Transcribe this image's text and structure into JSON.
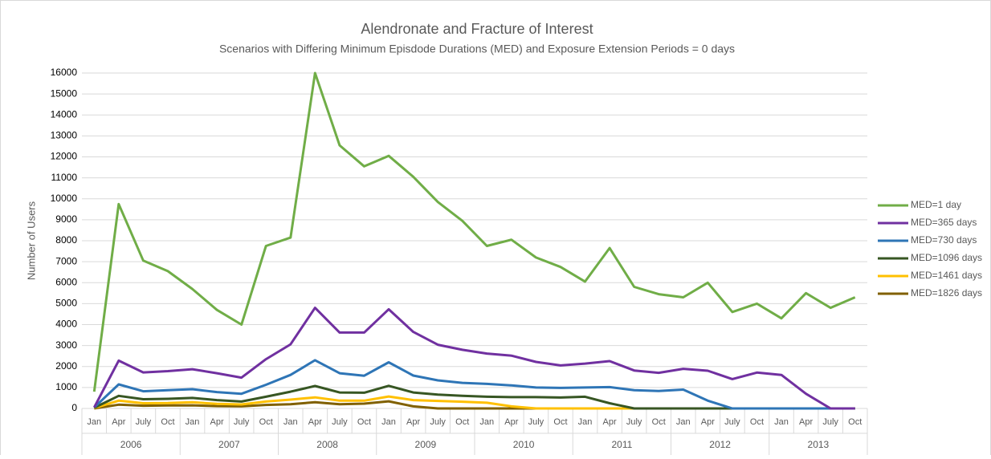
{
  "chart_data": {
    "type": "line",
    "title": "Alendronate and Fracture of Interest",
    "subtitle": "Scenarios with Differing Minimum Episdode Durations (MED) and Exposure Extension Periods = 0 days",
    "ylabel": "Number of Users",
    "categories": [
      "Jan",
      "Apr",
      "July",
      "Oct",
      "Jan",
      "Apr",
      "July",
      "Oct",
      "Jan",
      "Apr",
      "July",
      "Oct",
      "Jan",
      "Apr",
      "July",
      "Oct",
      "Jan",
      "Apr",
      "July",
      "Oct",
      "Jan",
      "Apr",
      "July",
      "Oct",
      "Jan",
      "Apr",
      "July",
      "Oct",
      "Jan",
      "Apr",
      "July",
      "Oct"
    ],
    "category_groups": [
      "2006",
      "2007",
      "2008",
      "2009",
      "2010",
      "2011",
      "2012",
      "2013"
    ],
    "ylim": [
      0,
      16000
    ],
    "yticks": [
      0,
      1000,
      2000,
      3000,
      4000,
      5000,
      6000,
      7000,
      8000,
      9000,
      10000,
      11000,
      12000,
      13000,
      14000,
      15000,
      16000
    ],
    "grid": true,
    "legend": "right",
    "series": [
      {
        "name": "MED=1 day",
        "color": "#70ad47",
        "values": [
          800,
          9750,
          7050,
          6550,
          5700,
          4700,
          4000,
          7750,
          8150,
          16000,
          12550,
          11550,
          12050,
          11050,
          9850,
          8950,
          7750,
          8050,
          7200,
          6750,
          6050,
          7650,
          5800,
          5450,
          5300,
          6000,
          4600,
          5000,
          4300,
          5500,
          4800,
          5300
        ]
      },
      {
        "name": "MED=365 days",
        "color": "#7030a0",
        "values": [
          50,
          2280,
          1720,
          1780,
          1870,
          1680,
          1470,
          2350,
          3060,
          4800,
          3620,
          3620,
          4730,
          3650,
          3040,
          2800,
          2620,
          2520,
          2220,
          2050,
          2140,
          2260,
          1810,
          1700,
          1890,
          1800,
          1400,
          1710,
          1600,
          700,
          0,
          0
        ]
      },
      {
        "name": "MED=730 days",
        "color": "#2e75b6",
        "values": [
          50,
          1150,
          820,
          870,
          920,
          780,
          700,
          1130,
          1600,
          2300,
          1680,
          1560,
          2200,
          1570,
          1340,
          1220,
          1170,
          1100,
          1000,
          980,
          1000,
          1020,
          870,
          830,
          900,
          370,
          0,
          0,
          0,
          0,
          0,
          0
        ]
      },
      {
        "name": "MED=1096 days",
        "color": "#375623",
        "values": [
          30,
          600,
          440,
          460,
          500,
          400,
          330,
          560,
          800,
          1070,
          760,
          750,
          1080,
          760,
          660,
          600,
          560,
          540,
          540,
          520,
          560,
          250,
          0,
          0,
          0,
          0,
          0,
          0,
          0,
          0,
          0,
          0
        ]
      },
      {
        "name": "MED=1461 days",
        "color": "#ffc000",
        "values": [
          20,
          370,
          250,
          260,
          300,
          220,
          190,
          330,
          420,
          530,
          370,
          370,
          570,
          400,
          360,
          320,
          270,
          100,
          0,
          0,
          0,
          0,
          0,
          0,
          0,
          0,
          0,
          0,
          0,
          0,
          0,
          0
        ]
      },
      {
        "name": "MED=1826 days",
        "color": "#806000",
        "values": [
          0,
          180,
          130,
          140,
          150,
          110,
          100,
          170,
          200,
          300,
          200,
          230,
          340,
          100,
          0,
          0,
          0,
          0,
          0,
          0,
          0,
          0,
          0,
          0,
          0,
          0,
          0,
          0,
          0,
          0,
          0,
          0
        ]
      }
    ]
  }
}
